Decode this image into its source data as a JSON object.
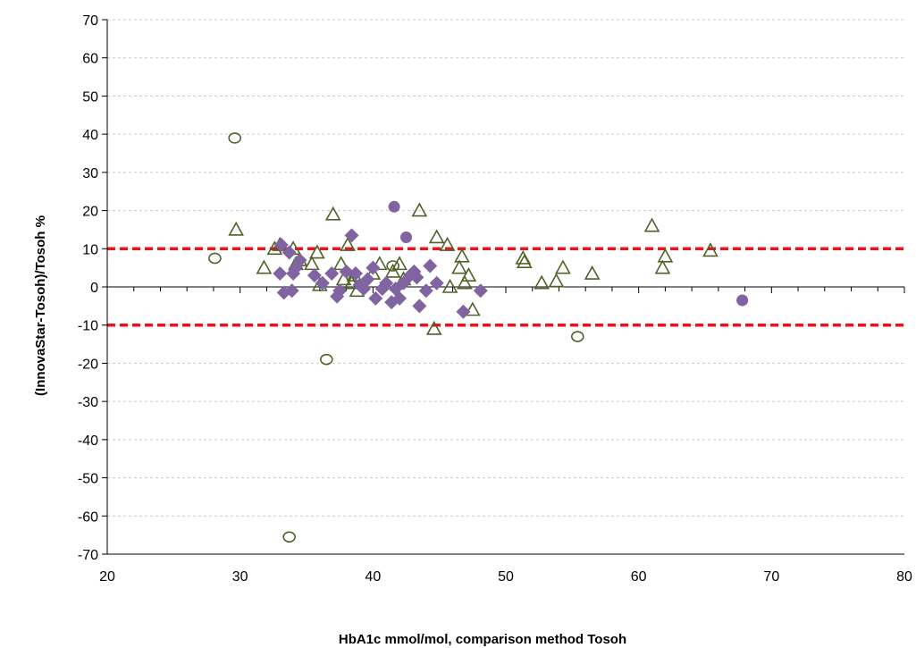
{
  "chart_data": {
    "type": "scatter",
    "xlabel": "HbA1c mmol/mol, comparison method Tosoh",
    "ylabel": "(InnovaStar-Tosoh)/Tosoh %",
    "xlim": [
      20,
      80
    ],
    "ylim": [
      -70,
      70
    ],
    "x_ticks": [
      20,
      30,
      40,
      50,
      60,
      70,
      80
    ],
    "y_ticks": [
      -70,
      -60,
      -50,
      -40,
      -30,
      -20,
      -10,
      0,
      10,
      20,
      30,
      40,
      50,
      60,
      70
    ],
    "grid": "horizontal dashed",
    "legend": "none",
    "reference_lines": [
      {
        "y": 10,
        "color": "#e8141b",
        "style": "dashed"
      },
      {
        "y": -10,
        "color": "#e8141b",
        "style": "dashed"
      }
    ],
    "series": [
      {
        "marker": "triangle-open",
        "color": "#4f6228",
        "points": [
          [
            29.7,
            15
          ],
          [
            31.8,
            5
          ],
          [
            32.6,
            10
          ],
          [
            33.0,
            11
          ],
          [
            34.0,
            10
          ],
          [
            34.2,
            6
          ],
          [
            34.5,
            7
          ],
          [
            35.4,
            6
          ],
          [
            35.8,
            9
          ],
          [
            36.0,
            0.5
          ],
          [
            37.0,
            19
          ],
          [
            37.6,
            6
          ],
          [
            37.8,
            2
          ],
          [
            38.1,
            11
          ],
          [
            38.4,
            1
          ],
          [
            38.6,
            3
          ],
          [
            38.8,
            -1
          ],
          [
            40.0,
            3.5
          ],
          [
            40.5,
            6
          ],
          [
            41.5,
            4
          ],
          [
            42.0,
            6
          ],
          [
            42.3,
            2
          ],
          [
            43.5,
            20
          ],
          [
            44.6,
            -11
          ],
          [
            44.8,
            13
          ],
          [
            45.6,
            11
          ],
          [
            45.8,
            0
          ],
          [
            46.5,
            5
          ],
          [
            46.7,
            8
          ],
          [
            46.9,
            1
          ],
          [
            47.2,
            3
          ],
          [
            47.5,
            -6
          ],
          [
            51.3,
            7.5
          ],
          [
            51.4,
            6.5
          ],
          [
            52.7,
            1
          ],
          [
            53.8,
            1.5
          ],
          [
            54.3,
            5
          ],
          [
            56.5,
            3.5
          ],
          [
            61.0,
            16
          ],
          [
            61.8,
            5
          ],
          [
            62.0,
            8
          ],
          [
            65.4,
            9.5
          ]
        ]
      },
      {
        "marker": "circle-open",
        "color": "#4f6228",
        "points": [
          [
            28.1,
            7.5
          ],
          [
            29.6,
            39
          ],
          [
            33.7,
            -65.5
          ],
          [
            36.5,
            -19
          ],
          [
            41.5,
            5.5
          ],
          [
            55.4,
            -13
          ]
        ]
      },
      {
        "marker": "diamond-filled",
        "color": "#8064a2",
        "points": [
          [
            33.0,
            3.5
          ],
          [
            33.1,
            11
          ],
          [
            33.3,
            -1.5
          ],
          [
            33.7,
            9
          ],
          [
            33.9,
            -1
          ],
          [
            34.0,
            3.5
          ],
          [
            34.2,
            5
          ],
          [
            34.5,
            7
          ],
          [
            35.6,
            3
          ],
          [
            36.2,
            1
          ],
          [
            36.9,
            3.5
          ],
          [
            37.3,
            -2.5
          ],
          [
            37.5,
            -1
          ],
          [
            38.0,
            4
          ],
          [
            38.4,
            13.5
          ],
          [
            38.7,
            3.5
          ],
          [
            39.0,
            0.5
          ],
          [
            39.3,
            -0.5
          ],
          [
            39.6,
            2
          ],
          [
            40.0,
            5
          ],
          [
            40.2,
            -3
          ],
          [
            40.7,
            -0.5
          ],
          [
            41.0,
            1
          ],
          [
            41.4,
            -4
          ],
          [
            41.7,
            -0.5
          ],
          [
            42.0,
            -3
          ],
          [
            42.3,
            1
          ],
          [
            42.8,
            3
          ],
          [
            43.1,
            4
          ],
          [
            43.3,
            2.5
          ],
          [
            43.5,
            -5
          ],
          [
            44.0,
            -1
          ],
          [
            44.3,
            5.5
          ],
          [
            44.8,
            1
          ],
          [
            46.8,
            -6.5
          ],
          [
            48.1,
            -1
          ]
        ]
      },
      {
        "marker": "circle-filled",
        "color": "#8064a2",
        "points": [
          [
            41.6,
            21
          ],
          [
            42.5,
            13
          ],
          [
            67.8,
            -3.5
          ]
        ]
      }
    ]
  }
}
